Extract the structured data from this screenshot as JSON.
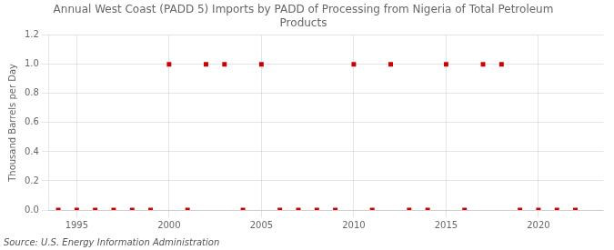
{
  "chart_data": {
    "type": "scatter",
    "title": "Annual West Coast (PADD 5) Imports by PADD of Processing from Nigeria of Total Petroleum\nProducts",
    "ylabel": "Thousand Barrels per Day",
    "annotation": "Source: U.S. Energy Information Administration",
    "x": [
      1994,
      1995,
      1996,
      1997,
      1998,
      1999,
      2000,
      2001,
      2002,
      2003,
      2004,
      2005,
      2006,
      2007,
      2008,
      2009,
      2010,
      2011,
      2012,
      2013,
      2014,
      2015,
      2016,
      2017,
      2018,
      2019,
      2020,
      2021,
      2022
    ],
    "values": [
      0,
      0,
      0,
      0,
      0,
      0,
      1,
      0,
      1,
      1,
      0,
      1,
      0,
      0,
      0,
      0,
      1,
      0,
      1,
      0,
      0,
      1,
      0,
      1,
      1,
      0,
      0,
      0,
      0
    ],
    "color": "#cc0000",
    "marker": "square",
    "xlim": [
      1993.5,
      2023.5
    ],
    "xticks": [
      1995,
      2000,
      2005,
      2010,
      2015,
      2020
    ],
    "ylim": [
      0,
      1.2
    ],
    "yticks": [
      {
        "value": 0.0,
        "label": "0.0"
      },
      0.2,
      0.4,
      0.6,
      0.8,
      {
        "value": 1.0,
        "label": "1.0"
      },
      1.2
    ],
    "grid": true
  }
}
